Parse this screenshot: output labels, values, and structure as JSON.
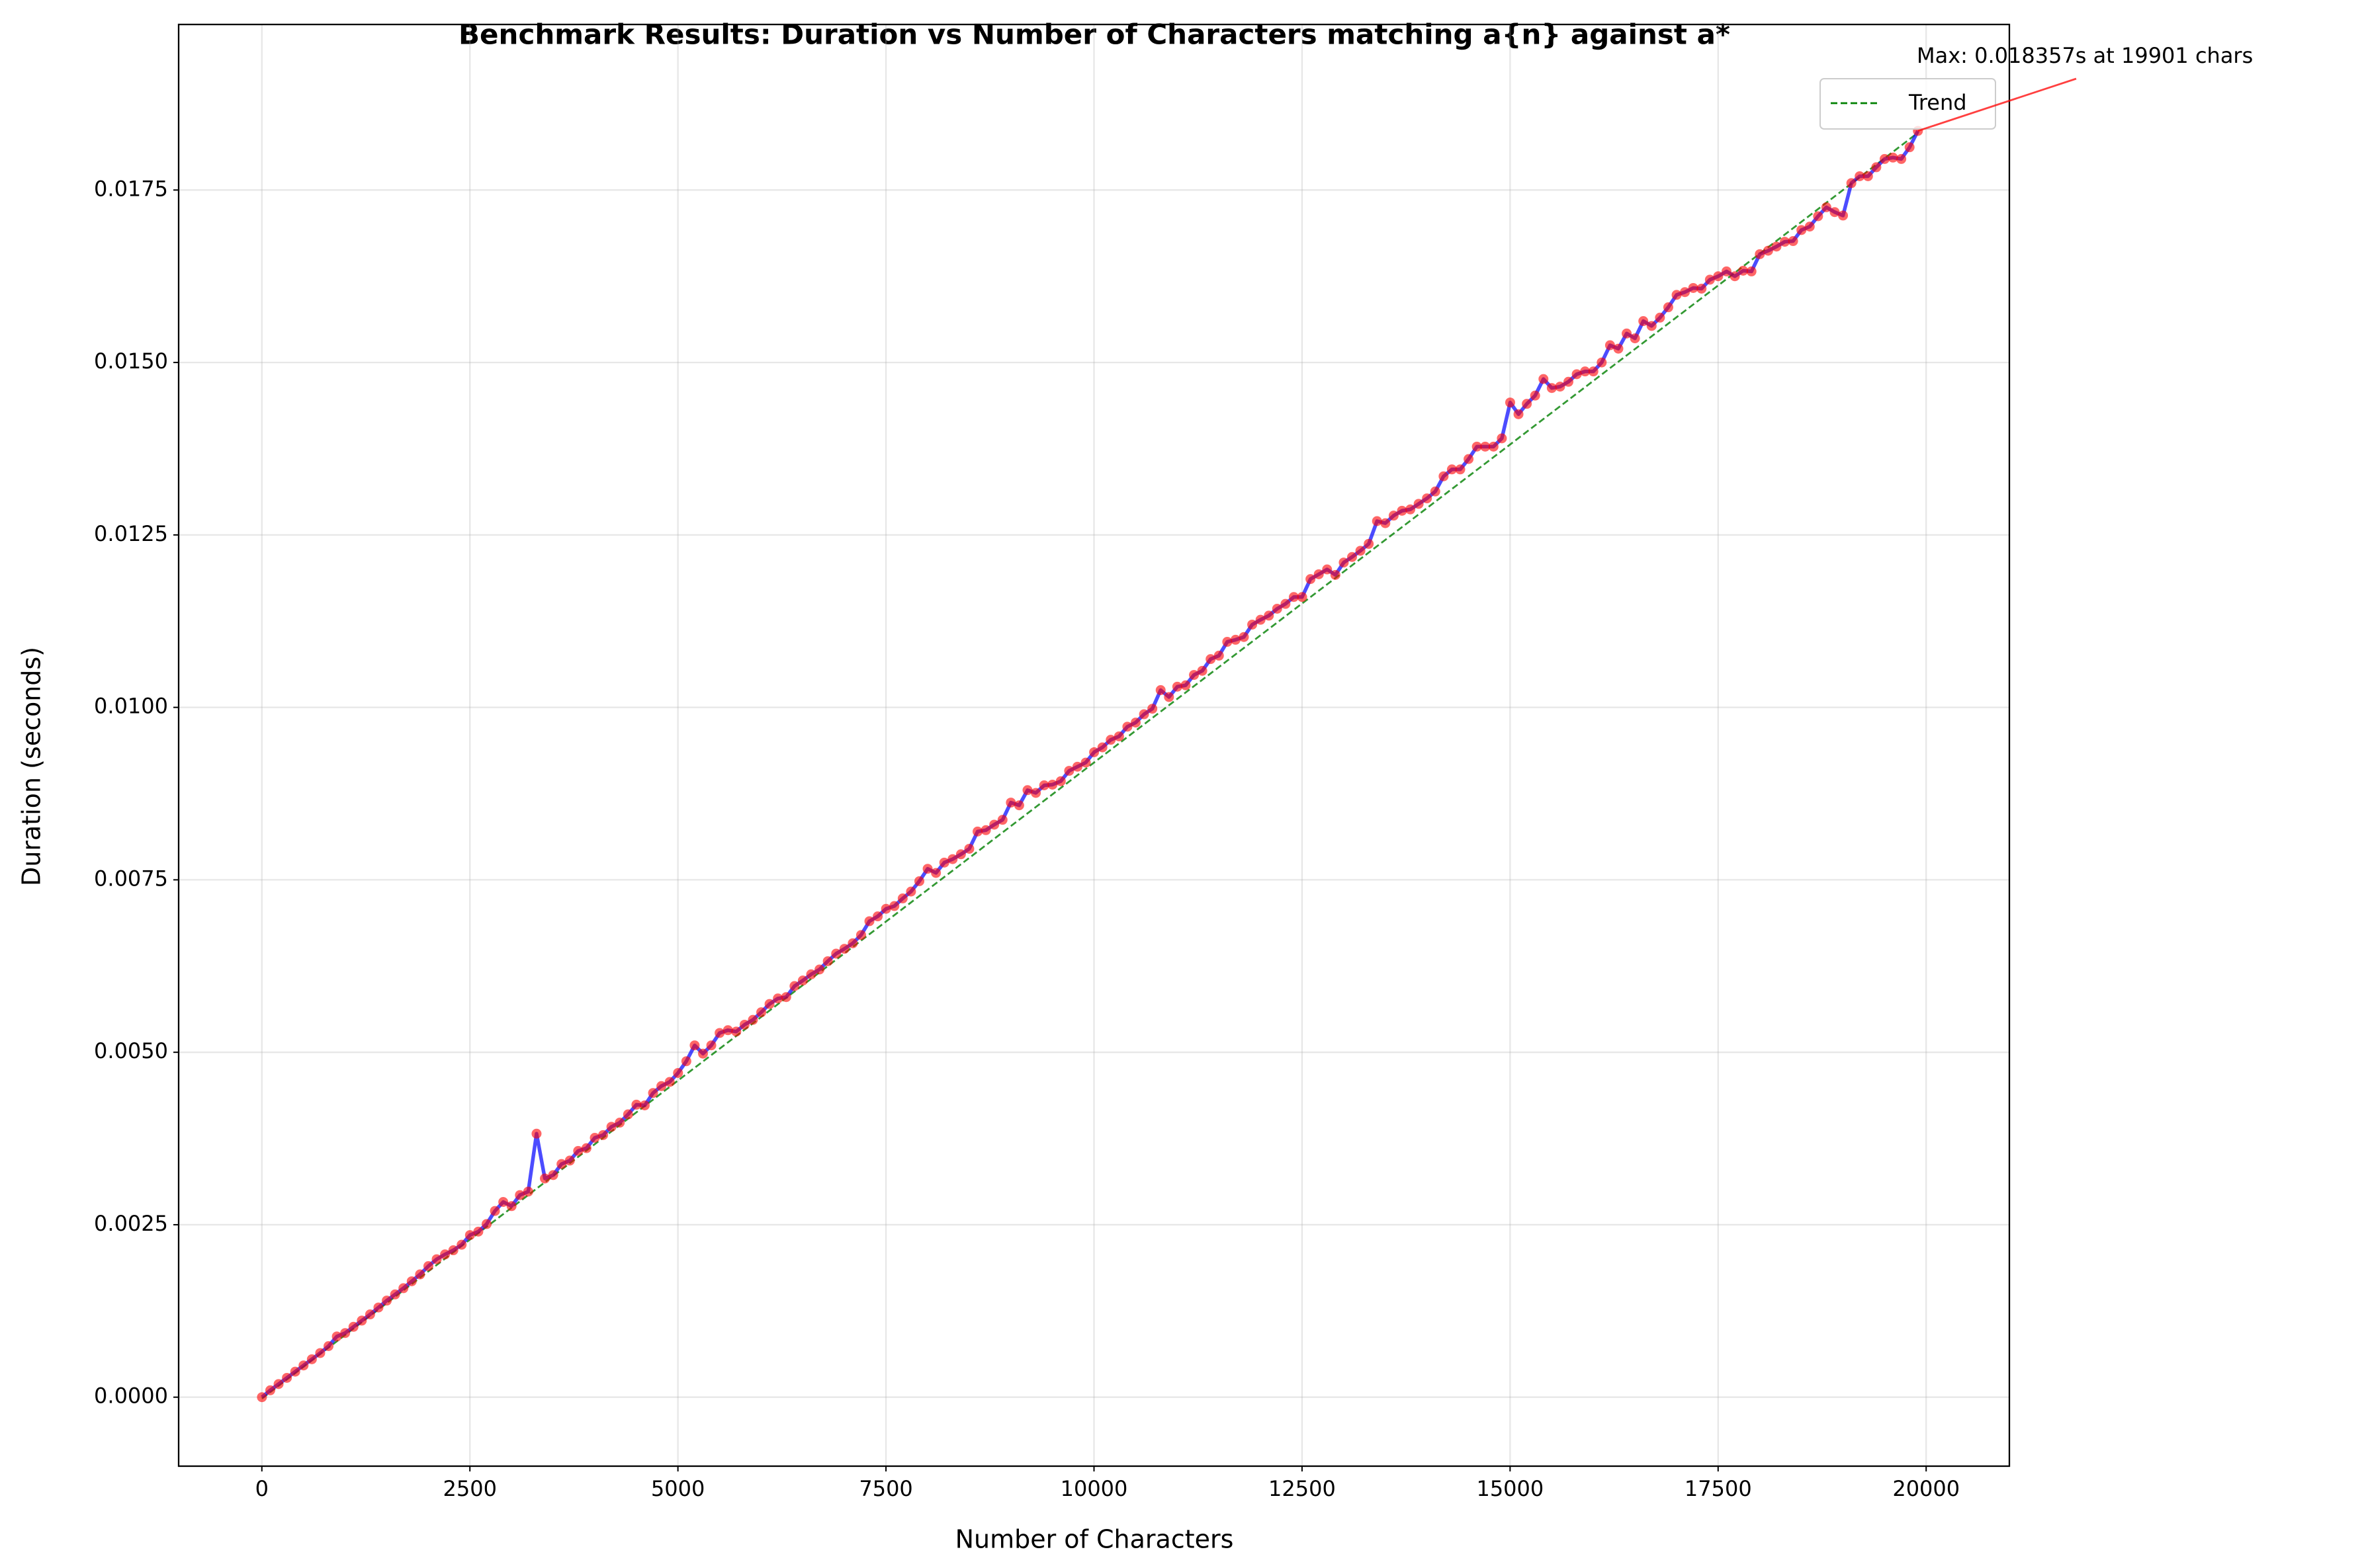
{
  "chart_data": {
    "type": "line",
    "title": "Benchmark Results: Duration vs Number of Characters matching a{n} against a*",
    "xlabel": "Number of Characters",
    "ylabel": "Duration (seconds)",
    "color": "blue",
    "marker_color": "red",
    "x": [
      1,
      101,
      201,
      301,
      401,
      501,
      601,
      701,
      801,
      901,
      1001,
      1101,
      1201,
      1301,
      1401,
      1501,
      1601,
      1701,
      1801,
      1901,
      2001,
      2101,
      2201,
      2301,
      2401,
      2501,
      2601,
      2701,
      2801,
      2901,
      3001,
      3101,
      3201,
      3301,
      3401,
      3501,
      3601,
      3701,
      3801,
      3901,
      4001,
      4101,
      4201,
      4301,
      4401,
      4501,
      4601,
      4701,
      4801,
      4901,
      5001,
      5101,
      5201,
      5301,
      5401,
      5501,
      5601,
      5701,
      5801,
      5901,
      6001,
      6101,
      6201,
      6301,
      6401,
      6501,
      6601,
      6701,
      6801,
      6901,
      7001,
      7101,
      7201,
      7301,
      7401,
      7501,
      7601,
      7701,
      7801,
      7901,
      8001,
      8101,
      8201,
      8301,
      8401,
      8501,
      8601,
      8701,
      8801,
      8901,
      9001,
      9101,
      9201,
      9301,
      9401,
      9501,
      9601,
      9701,
      9801,
      9901,
      10001,
      10101,
      10201,
      10301,
      10401,
      10501,
      10601,
      10701,
      10801,
      10901,
      11001,
      11101,
      11201,
      11301,
      11401,
      11501,
      11601,
      11701,
      11801,
      11901,
      12001,
      12101,
      12201,
      12301,
      12401,
      12501,
      12601,
      12701,
      12801,
      12901,
      13001,
      13101,
      13201,
      13301,
      13401,
      13501,
      13601,
      13701,
      13801,
      13901,
      14001,
      14101,
      14201,
      14301,
      14401,
      14501,
      14601,
      14701,
      14801,
      14901,
      15001,
      15101,
      15201,
      15301,
      15401,
      15501,
      15601,
      15701,
      15801,
      15901,
      16001,
      16101,
      16201,
      16301,
      16401,
      16501,
      16601,
      16701,
      16801,
      16901,
      17001,
      17101,
      17201,
      17301,
      17401,
      17501,
      17601,
      17701,
      17801,
      17901,
      18001,
      18101,
      18201,
      18301,
      18401,
      18501,
      18601,
      18701,
      18801,
      18901,
      19001,
      19101,
      19201,
      19301,
      19401,
      19501,
      19601,
      19701,
      19801,
      19901
    ],
    "values": [
      0.0,
      0.0001,
      0.00019,
      0.00028,
      0.00037,
      0.00046,
      0.00055,
      0.00064,
      0.00074,
      0.00088,
      0.00093,
      0.00102,
      0.00111,
      0.0012,
      0.0013,
      0.0014,
      0.00149,
      0.00158,
      0.00168,
      0.00178,
      0.0019,
      0.002,
      0.00207,
      0.00213,
      0.00221,
      0.00235,
      0.0024,
      0.00251,
      0.0027,
      0.00283,
      0.00277,
      0.00293,
      0.00298,
      0.00382,
      0.00317,
      0.00322,
      0.00338,
      0.00343,
      0.00357,
      0.00361,
      0.00376,
      0.0038,
      0.00392,
      0.00398,
      0.0041,
      0.00424,
      0.00423,
      0.00441,
      0.00451,
      0.00457,
      0.0047,
      0.00487,
      0.0051,
      0.00498,
      0.0051,
      0.00528,
      0.00532,
      0.0053,
      0.0054,
      0.00547,
      0.00558,
      0.0057,
      0.00578,
      0.0058,
      0.00596,
      0.00604,
      0.00613,
      0.0062,
      0.00632,
      0.00643,
      0.0065,
      0.00658,
      0.0067,
      0.0069,
      0.00697,
      0.00708,
      0.00712,
      0.00723,
      0.00733,
      0.00748,
      0.00766,
      0.0076,
      0.00775,
      0.0078,
      0.00787,
      0.00795,
      0.0082,
      0.00822,
      0.0083,
      0.00837,
      0.00862,
      0.00858,
      0.0088,
      0.00876,
      0.00887,
      0.00888,
      0.00893,
      0.00908,
      0.00914,
      0.0092,
      0.00935,
      0.00942,
      0.00953,
      0.00958,
      0.00972,
      0.00978,
      0.0099,
      0.00998,
      0.01025,
      0.01015,
      0.0103,
      0.01032,
      0.01047,
      0.01053,
      0.0107,
      0.01075,
      0.01095,
      0.01098,
      0.01102,
      0.0112,
      0.01127,
      0.01133,
      0.01143,
      0.0115,
      0.0116,
      0.0116,
      0.01186,
      0.01193,
      0.012,
      0.01192,
      0.0121,
      0.01218,
      0.01227,
      0.01237,
      0.0127,
      0.01267,
      0.01278,
      0.01285,
      0.01287,
      0.01295,
      0.01303,
      0.01313,
      0.01335,
      0.01345,
      0.01345,
      0.0136,
      0.01378,
      0.01378,
      0.01378,
      0.0139,
      0.01442,
      0.01425,
      0.0144,
      0.01452,
      0.01476,
      0.01463,
      0.01465,
      0.01472,
      0.01483,
      0.01487,
      0.01487,
      0.015,
      0.01525,
      0.0152,
      0.01542,
      0.01535,
      0.0156,
      0.01553,
      0.01565,
      0.0158,
      0.01598,
      0.01602,
      0.01608,
      0.01607,
      0.0162,
      0.01625,
      0.01632,
      0.01625,
      0.01633,
      0.01632,
      0.01657,
      0.01662,
      0.01668,
      0.01675,
      0.01676,
      0.01692,
      0.01697,
      0.01712,
      0.01725,
      0.01718,
      0.01713,
      0.0176,
      0.0177,
      0.0177,
      0.01783,
      0.01795,
      0.01797,
      0.01795,
      0.01812,
      0.018357
    ],
    "trend": {
      "name": "Trend",
      "color": "green",
      "x": [
        1,
        19901
      ],
      "values": [
        -2e-05,
        0.01833
      ]
    },
    "annotation": {
      "text": "Max: 0.018357s at 19901 chars",
      "xy": [
        19901,
        0.018357
      ],
      "color": "red"
    },
    "xlim": [
      -1000,
      21000
    ],
    "ylim": [
      -0.001,
      0.0199
    ],
    "xticks": [
      0,
      2500,
      5000,
      7500,
      10000,
      12500,
      15000,
      17500,
      20000
    ],
    "yticks": [
      {
        "value": 0,
        "label": "0.0000"
      },
      {
        "value": 0.0025,
        "label": "0.0025"
      },
      {
        "value": 0.005,
        "label": "0.0050"
      },
      {
        "value": 0.0075,
        "label": "0.0075"
      },
      {
        "value": 0.01,
        "label": "0.0100"
      },
      {
        "value": 0.0125,
        "label": "0.0125"
      },
      {
        "value": 0.015,
        "label": "0.0150"
      },
      {
        "value": 0.0175,
        "label": "0.0175"
      }
    ],
    "grid": true,
    "legend": "upper right"
  }
}
